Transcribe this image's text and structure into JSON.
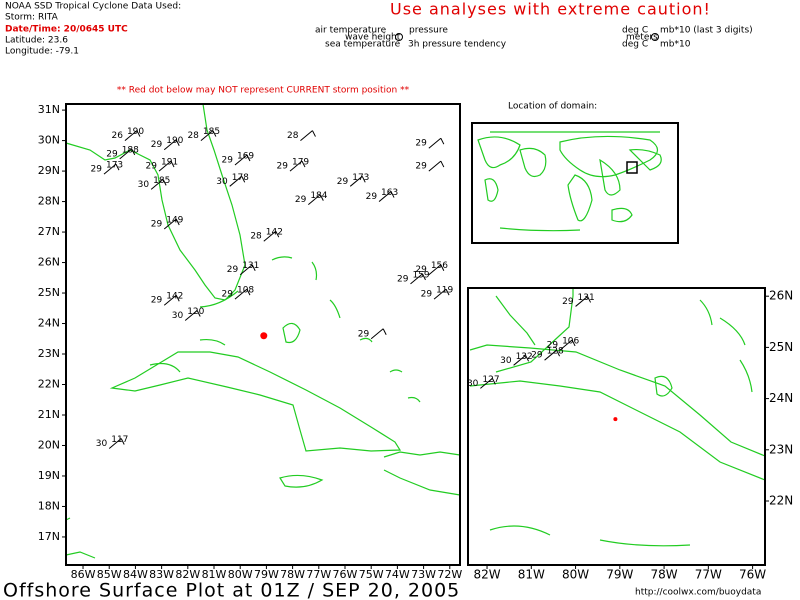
{
  "header": {
    "source": "NOAA SSD Tropical Cyclone Data Used:",
    "storm": "Storm: RITA",
    "datetime": "Date/Time: 20/0645 UTC",
    "latitude": "Latitude: 23.6",
    "longitude": "Longitude: -79.1"
  },
  "caution": "Use analyses with extreme caution!",
  "legend": {
    "air_temperature": "air temperature",
    "pressure": "pressure",
    "wave_height": "wave height",
    "sea_temperature": "sea temperature",
    "pressure_tendency": "3h pressure tendency",
    "unit_air": "deg C",
    "unit_pressure": "mb*10 (last 3 digits)",
    "unit_wave": "meters",
    "unit_sea": "deg C",
    "unit_tendency": "mb*10"
  },
  "warning": "** Red dot below may NOT represent CURRENT storm position **",
  "domain_label": "Location of domain:",
  "storm_position": {
    "lat": 23.6,
    "lon": -79.1
  },
  "main_map": {
    "lonlim": [
      -86.65,
      -71.61
    ],
    "latlim": [
      16.08,
      31.2
    ],
    "lat_ticks": [
      {
        "value": 31,
        "label": "31N"
      },
      {
        "value": 30,
        "label": "30N"
      },
      {
        "value": 29,
        "label": "29N"
      },
      {
        "value": 28,
        "label": "28N"
      },
      {
        "value": 27,
        "label": "27N"
      },
      {
        "value": 26,
        "label": "26N"
      },
      {
        "value": 25,
        "label": "25N"
      },
      {
        "value": 24,
        "label": "24N"
      },
      {
        "value": 23,
        "label": "23N"
      },
      {
        "value": 22,
        "label": "22N"
      },
      {
        "value": 21,
        "label": "21N"
      },
      {
        "value": 20,
        "label": "20N"
      },
      {
        "value": 19,
        "label": "19N"
      },
      {
        "value": 18,
        "label": "18N"
      },
      {
        "value": 17,
        "label": "17N"
      }
    ],
    "lon_ticks": [
      {
        "value": -86,
        "label": "86W"
      },
      {
        "value": -85,
        "label": "85W"
      },
      {
        "value": -84,
        "label": "84W"
      },
      {
        "value": -83,
        "label": "83W"
      },
      {
        "value": -82,
        "label": "82W"
      },
      {
        "value": -81,
        "label": "81W"
      },
      {
        "value": -80,
        "label": "80W"
      },
      {
        "value": -79,
        "label": "79W"
      },
      {
        "value": -78,
        "label": "78W"
      },
      {
        "value": -77,
        "label": "77W"
      },
      {
        "value": -76,
        "label": "76W"
      },
      {
        "value": -75,
        "label": "75W"
      },
      {
        "value": -74,
        "label": "74W"
      },
      {
        "value": -73,
        "label": "73W"
      },
      {
        "value": -72,
        "label": "72W"
      }
    ],
    "stations": [
      {
        "lat": 30.0,
        "lon": -84.4,
        "temp": "26",
        "pressure": "190"
      },
      {
        "lat": 29.7,
        "lon": -82.9,
        "temp": "29",
        "pressure": "190"
      },
      {
        "lat": 29.4,
        "lon": -84.6,
        "temp": "29",
        "pressure": "188"
      },
      {
        "lat": 29.0,
        "lon": -83.1,
        "temp": "29",
        "pressure": "191"
      },
      {
        "lat": 28.9,
        "lon": -85.2,
        "temp": "29",
        "pressure": "173"
      },
      {
        "lat": 28.4,
        "lon": -83.4,
        "temp": "30",
        "pressure": "185"
      },
      {
        "lat": 30.0,
        "lon": -81.5,
        "temp": "28",
        "pressure": "185"
      },
      {
        "lat": 29.2,
        "lon": -80.2,
        "temp": "29",
        "pressure": "169"
      },
      {
        "lat": 28.5,
        "lon": -80.4,
        "temp": "30",
        "pressure": "178"
      },
      {
        "lat": 30.0,
        "lon": -77.7,
        "temp": "28"
      },
      {
        "lat": 29.0,
        "lon": -78.1,
        "temp": "29",
        "pressure": "179"
      },
      {
        "lat": 27.9,
        "lon": -77.4,
        "temp": "29",
        "pressure": "184"
      },
      {
        "lat": 28.5,
        "lon": -75.8,
        "temp": "29",
        "pressure": "173"
      },
      {
        "lat": 28.0,
        "lon": -74.7,
        "temp": "29",
        "pressure": "163"
      },
      {
        "lat": 29.75,
        "lon": -72.8,
        "temp": "29"
      },
      {
        "lat": 29.0,
        "lon": -72.8,
        "temp": "29"
      },
      {
        "lat": 27.1,
        "lon": -82.9,
        "temp": "29",
        "pressure": "149"
      },
      {
        "lat": 26.7,
        "lon": -79.1,
        "temp": "28",
        "pressure": "142"
      },
      {
        "lat": 25.6,
        "lon": -80.0,
        "temp": "29",
        "pressure": "131"
      },
      {
        "lat": 24.8,
        "lon": -80.2,
        "temp": "29",
        "pressure": "108"
      },
      {
        "lat": 24.6,
        "lon": -82.9,
        "temp": "29",
        "pressure": "142"
      },
      {
        "lat": 24.1,
        "lon": -82.1,
        "temp": "30",
        "pressure": "120"
      },
      {
        "lat": 25.3,
        "lon": -73.5,
        "temp": "29",
        "pressure": "159"
      },
      {
        "lat": 25.6,
        "lon": -72.8,
        "temp": "29",
        "pressure": "156"
      },
      {
        "lat": 24.8,
        "lon": -72.6,
        "temp": "29",
        "pressure": "119"
      },
      {
        "lat": 23.5,
        "lon": -75.0,
        "temp": "29"
      },
      {
        "lat": 19.9,
        "lon": -85.0,
        "temp": "30",
        "pressure": "117"
      }
    ]
  },
  "inset_map": {
    "lonlim": [
      -82.43,
      -75.72
    ],
    "latlim": [
      20.75,
      26.16
    ],
    "lat_ticks": [
      {
        "value": 26,
        "label": "26N"
      },
      {
        "value": 25,
        "label": "25N"
      },
      {
        "value": 24,
        "label": "24N"
      },
      {
        "value": 23,
        "label": "23N"
      },
      {
        "value": 22,
        "label": "22N"
      }
    ],
    "lon_ticks": [
      {
        "value": -82,
        "label": "82W"
      },
      {
        "value": -81,
        "label": "81W"
      },
      {
        "value": -80,
        "label": "80W"
      },
      {
        "value": -79,
        "label": "79W"
      },
      {
        "value": -78,
        "label": "78W"
      },
      {
        "value": -77,
        "label": "77W"
      },
      {
        "value": -76,
        "label": "76W"
      }
    ],
    "stations": [
      {
        "lat": 25.8,
        "lon": -80.0,
        "temp": "29",
        "pressure": "131"
      },
      {
        "lat": 24.95,
        "lon": -80.35,
        "temp": "29",
        "pressure": "106"
      },
      {
        "lat": 24.75,
        "lon": -80.7,
        "temp": "29",
        "pressure": "128"
      },
      {
        "lat": 24.65,
        "lon": -81.4,
        "temp": "30",
        "pressure": "132"
      },
      {
        "lat": 24.2,
        "lon": -82.15,
        "temp": "30",
        "pressure": "127"
      }
    ]
  },
  "footer": {
    "title": "Offshore Surface Plot at 01Z / SEP 20, 2005",
    "url": "http://coolwx.com/buoydata"
  }
}
